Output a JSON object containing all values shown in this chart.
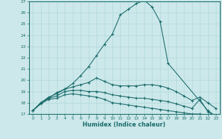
{
  "xlabel": "Humidex (Indice chaleur)",
  "xlim": [
    -0.5,
    23.5
  ],
  "ylim": [
    17,
    27
  ],
  "yticks": [
    17,
    18,
    19,
    20,
    21,
    22,
    23,
    24,
    25,
    26,
    27
  ],
  "xticks": [
    0,
    1,
    2,
    3,
    4,
    5,
    6,
    7,
    8,
    9,
    10,
    11,
    12,
    13,
    14,
    15,
    16,
    17,
    18,
    19,
    20,
    21,
    22,
    23
  ],
  "background_color": "#cce8ea",
  "grid_color": "#b0d8dc",
  "line_color": "#1a6b6b",
  "curves": [
    {
      "x": [
        0,
        1,
        2,
        3,
        4,
        5,
        6,
        7,
        8,
        9,
        10,
        11,
        12,
        13,
        14,
        15,
        16,
        17,
        22,
        23
      ],
      "y": [
        17.3,
        18.0,
        18.4,
        18.9,
        19.2,
        19.7,
        20.4,
        21.2,
        22.2,
        23.2,
        24.1,
        25.8,
        26.3,
        26.8,
        27.1,
        26.5,
        25.2,
        21.5,
        17.3,
        16.8
      ]
    },
    {
      "x": [
        0,
        1,
        2,
        3,
        4,
        5,
        6,
        7,
        8,
        9,
        10,
        11,
        12,
        13,
        14,
        15,
        16,
        17,
        18,
        19,
        20,
        21,
        22,
        23
      ],
      "y": [
        17.3,
        18.0,
        18.5,
        18.8,
        19.2,
        19.4,
        19.6,
        19.8,
        20.2,
        19.9,
        19.6,
        19.5,
        19.5,
        19.5,
        19.6,
        19.6,
        19.5,
        19.3,
        19.0,
        18.6,
        18.2,
        18.5,
        18.0,
        17.5
      ]
    },
    {
      "x": [
        0,
        1,
        2,
        3,
        4,
        5,
        6,
        7,
        8,
        9,
        10,
        11,
        12,
        13,
        14,
        15,
        16,
        17,
        18,
        19,
        20,
        21,
        22,
        23
      ],
      "y": [
        17.3,
        18.0,
        18.4,
        18.6,
        19.0,
        19.1,
        19.1,
        19.0,
        19.0,
        18.9,
        18.7,
        18.6,
        18.5,
        18.4,
        18.4,
        18.3,
        18.2,
        18.1,
        17.9,
        17.7,
        17.5,
        18.3,
        17.2,
        16.8
      ]
    },
    {
      "x": [
        0,
        1,
        2,
        3,
        4,
        5,
        6,
        7,
        8,
        9,
        10,
        11,
        12,
        13,
        14,
        15,
        16,
        17,
        18,
        19,
        20,
        21,
        22,
        23
      ],
      "y": [
        17.3,
        17.9,
        18.3,
        18.4,
        18.7,
        18.8,
        18.7,
        18.6,
        18.5,
        18.3,
        18.0,
        17.9,
        17.8,
        17.7,
        17.6,
        17.5,
        17.4,
        17.3,
        17.2,
        17.1,
        17.0,
        17.0,
        16.9,
        16.8
      ]
    }
  ]
}
